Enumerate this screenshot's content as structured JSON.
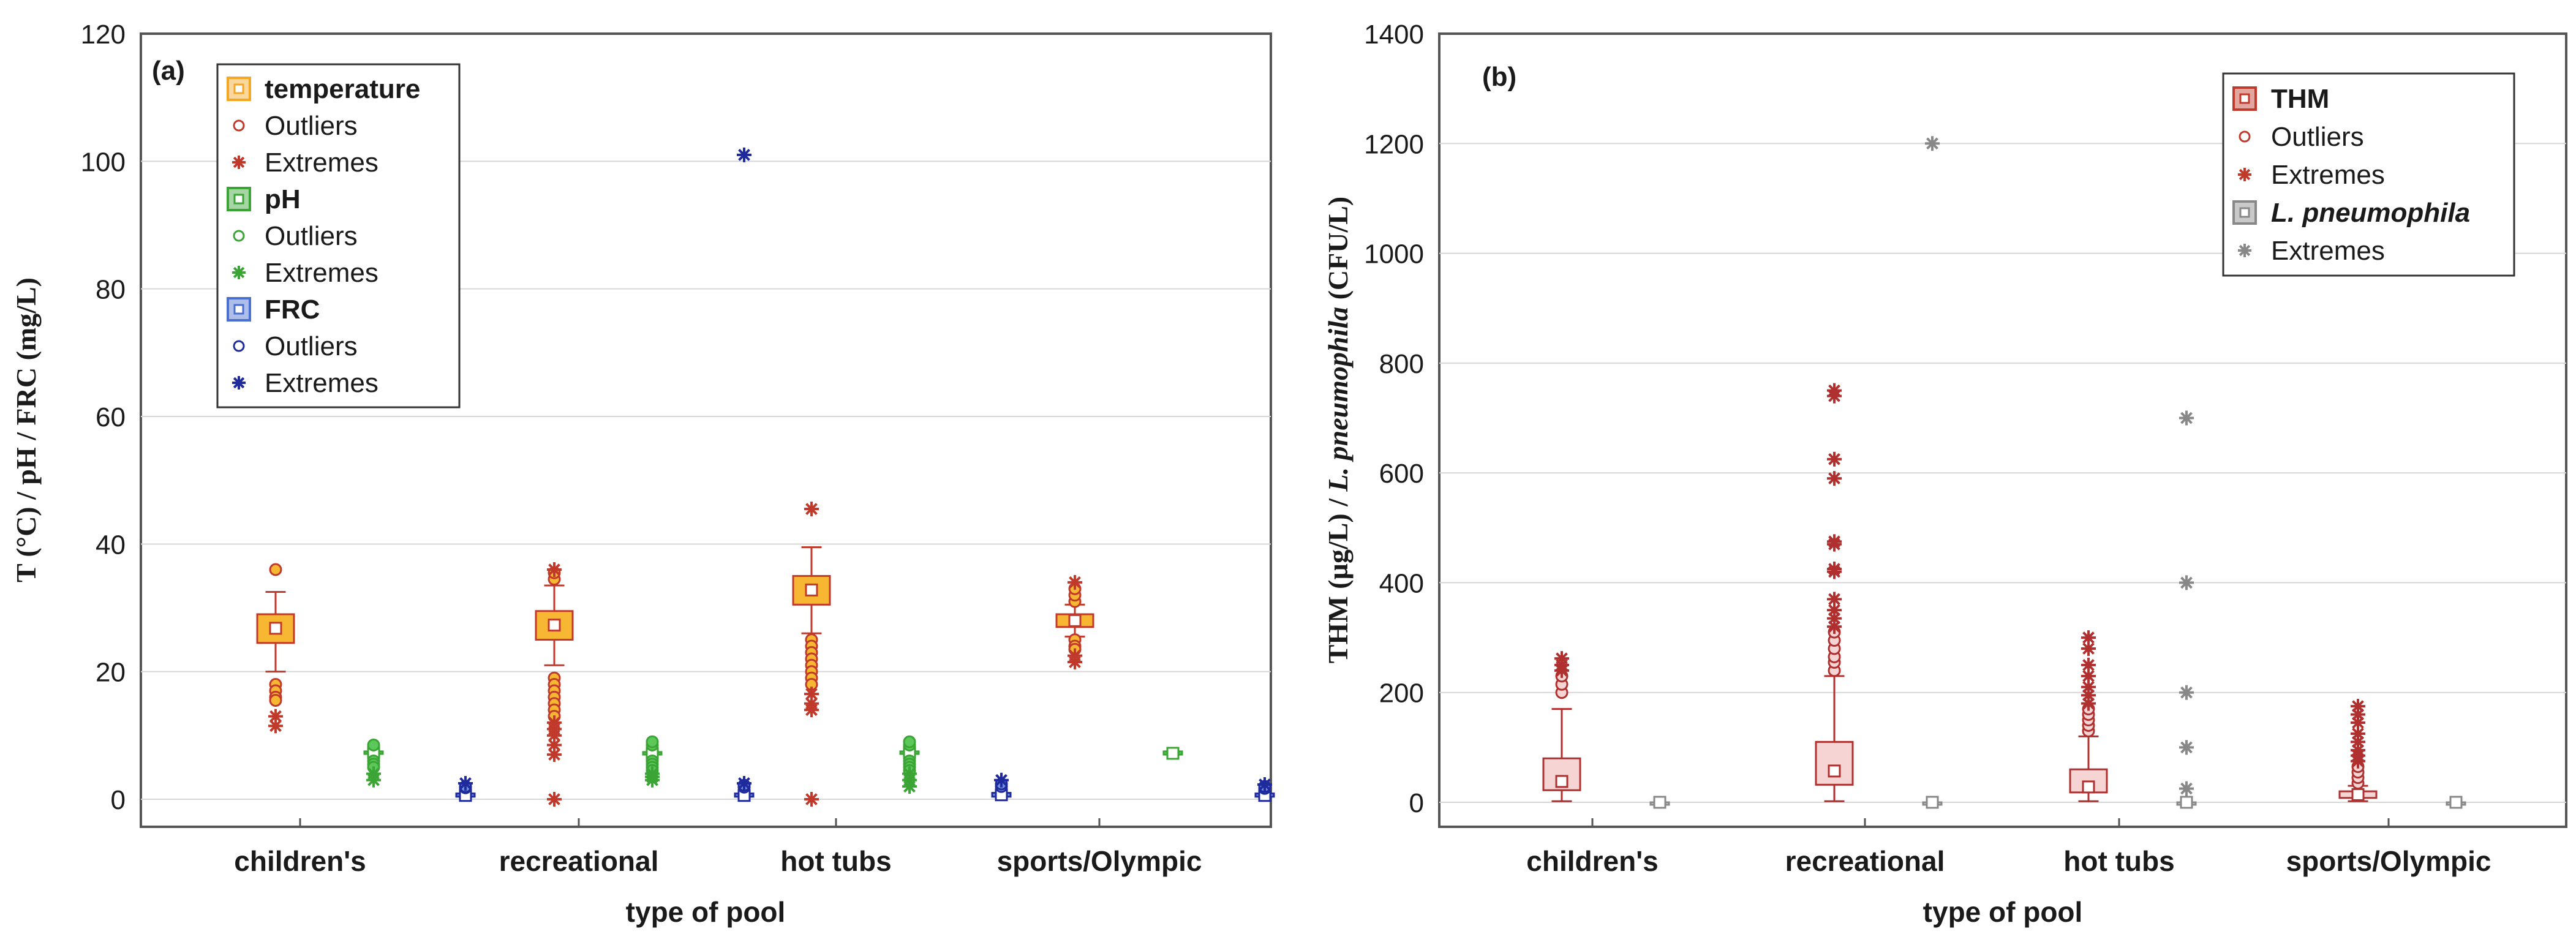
{
  "chart_data": [
    {
      "type": "boxplot",
      "panel_label": "(a)",
      "xlabel": "type of pool",
      "ylabel": "T (°C) / pH / FRC (mg/L)",
      "ylim": [
        0,
        120
      ],
      "yticks": [
        0,
        20,
        40,
        60,
        80,
        100,
        120
      ],
      "categories": [
        "children's",
        "recreational",
        "hot tubs",
        "sports/Olympic"
      ],
      "grid": true,
      "legend": {
        "position": "top-left",
        "entries": [
          {
            "label": "temperature",
            "bold": true,
            "symbol": "box",
            "color": "#f5a623"
          },
          {
            "label": "Outliers",
            "symbol": "circle",
            "color": "#c0392b"
          },
          {
            "label": "Extremes",
            "symbol": "star",
            "color": "#c0392b"
          },
          {
            "label": "pH",
            "bold": true,
            "symbol": "box",
            "color": "#3aa535"
          },
          {
            "label": "Outliers",
            "symbol": "circle",
            "color": "#3aa535"
          },
          {
            "label": "Extremes",
            "symbol": "star",
            "color": "#3aa535"
          },
          {
            "label": "FRC",
            "bold": true,
            "symbol": "box",
            "color": "#4a6fd1"
          },
          {
            "label": "Outliers",
            "symbol": "circle",
            "color": "#1f2a9c"
          },
          {
            "label": "Extremes",
            "symbol": "star",
            "color": "#1f2a9c"
          }
        ]
      },
      "series": [
        {
          "name": "temperature",
          "fill": "#f7b733",
          "edge": "#c0392b",
          "boxes": [
            {
              "median": 26.8,
              "q1": 24.5,
              "q3": 29.0,
              "whisker_low": 20.0,
              "whisker_high": 32.5,
              "outliers": [
                18.0,
                17.0,
                16.0,
                15.5,
                36.0
              ],
              "extremes": [
                13.0,
                11.5
              ]
            },
            {
              "median": 27.3,
              "q1": 25.0,
              "q3": 29.5,
              "whisker_low": 21.0,
              "whisker_high": 33.5,
              "outliers": [
                19.0,
                18.0,
                17.0,
                16.0,
                15.0,
                14.0,
                13.0,
                34.5,
                35.5
              ],
              "extremes": [
                12.0,
                11.0,
                10.0,
                8.5,
                7.0,
                0.0,
                36.0
              ]
            },
            {
              "median": 32.8,
              "q1": 30.5,
              "q3": 35.0,
              "whisker_low": 26.0,
              "whisker_high": 39.5,
              "outliers": [
                25.0,
                24.0,
                23.0,
                22.0,
                21.0,
                20.0,
                19.0,
                18.0
              ],
              "extremes": [
                16.5,
                15.0,
                14.0,
                0.0,
                45.5
              ]
            },
            {
              "median": 28.0,
              "q1": 27.0,
              "q3": 29.0,
              "whisker_low": 25.5,
              "whisker_high": 30.5,
              "outliers": [
                31.0,
                32.0,
                33.0,
                25.0,
                24.0,
                23.5
              ],
              "extremes": [
                34.0,
                22.5,
                21.5
              ]
            }
          ]
        },
        {
          "name": "pH",
          "fill": "#5cc85a",
          "edge": "#3aa535",
          "boxes": [
            {
              "median": 7.3,
              "q1": 7.1,
              "q3": 7.5,
              "whisker_low": 6.6,
              "whisker_high": 8.0,
              "outliers": [
                8.5,
                6.0,
                5.5,
                5.0
              ],
              "extremes": [
                4.0,
                3.0
              ]
            },
            {
              "median": 7.2,
              "q1": 7.0,
              "q3": 7.4,
              "whisker_low": 6.5,
              "whisker_high": 7.9,
              "outliers": [
                8.5,
                9.0,
                6.0,
                5.5,
                5.0,
                4.5
              ],
              "extremes": [
                4.0,
                3.5,
                3.0
              ]
            },
            {
              "median": 7.3,
              "q1": 7.1,
              "q3": 7.5,
              "whisker_low": 6.6,
              "whisker_high": 8.0,
              "outliers": [
                8.5,
                9.0,
                6.0,
                5.5,
                5.0,
                4.5
              ],
              "extremes": [
                4.0,
                3.0,
                2.0
              ]
            },
            {
              "median": 7.2,
              "q1": 7.0,
              "q3": 7.5,
              "whisker_low": 6.8,
              "whisker_high": 7.8,
              "outliers": [],
              "extremes": []
            }
          ]
        },
        {
          "name": "FRC",
          "fill": "#6f8fe0",
          "edge": "#1f2a9c",
          "boxes": [
            {
              "median": 0.6,
              "q1": 0.4,
              "q3": 0.9,
              "whisker_low": 0.1,
              "whisker_high": 1.5,
              "outliers": [
                1.8,
                2.0
              ],
              "extremes": [
                2.5
              ]
            },
            {
              "median": 0.6,
              "q1": 0.4,
              "q3": 0.9,
              "whisker_low": 0.1,
              "whisker_high": 1.6,
              "outliers": [
                1.9,
                2.2
              ],
              "extremes": [
                2.5,
                101.0
              ]
            },
            {
              "median": 0.7,
              "q1": 0.4,
              "q3": 1.0,
              "whisker_low": 0.1,
              "whisker_high": 1.7,
              "outliers": [
                2.0,
                2.4
              ],
              "extremes": [
                3.0
              ]
            },
            {
              "median": 0.6,
              "q1": 0.4,
              "q3": 0.9,
              "whisker_low": 0.1,
              "whisker_high": 1.4,
              "outliers": [
                1.7,
                2.0
              ],
              "extremes": [
                2.3
              ]
            }
          ]
        }
      ]
    },
    {
      "type": "boxplot",
      "panel_label": "(b)",
      "xlabel": "type of pool",
      "ylabel_parts": [
        "THM (µg/L) / ",
        "L. pneumophila",
        " (CFU/L)"
      ],
      "ylim": [
        0,
        1400
      ],
      "yticks": [
        0,
        200,
        400,
        600,
        800,
        1000,
        1200,
        1400
      ],
      "categories": [
        "children's",
        "recreational",
        "hot tubs",
        "sports/Olympic"
      ],
      "grid": true,
      "legend": {
        "position": "top-right",
        "entries": [
          {
            "label": "THM",
            "bold": true,
            "symbol": "box",
            "color": "#c0392b"
          },
          {
            "label": "Outliers",
            "symbol": "circle",
            "color": "#c0392b"
          },
          {
            "label": "Extremes",
            "symbol": "star",
            "color": "#c0392b"
          },
          {
            "label": "L. pneumophila",
            "bold": true,
            "italic": true,
            "symbol": "box",
            "color": "#888888"
          },
          {
            "label": "Extremes",
            "symbol": "star",
            "color": "#888888"
          }
        ]
      },
      "series": [
        {
          "name": "THM",
          "fill": "#f7d4d4",
          "edge": "#b03030",
          "boxes": [
            {
              "median": 38,
              "q1": 22,
              "q3": 80,
              "whisker_low": 2,
              "whisker_high": 170,
              "outliers": [
                200,
                215,
                230
              ],
              "extremes": [
                240,
                250,
                262
              ]
            },
            {
              "median": 57,
              "q1": 32,
              "q3": 110,
              "whisker_low": 2,
              "whisker_high": 230,
              "outliers": [
                240,
                255,
                265,
                280,
                295,
                310
              ],
              "extremes": [
                320,
                335,
                350,
                370,
                420,
                425,
                470,
                475,
                590,
                625,
                740,
                750
              ]
            },
            {
              "median": 28,
              "q1": 18,
              "q3": 60,
              "whisker_low": 2,
              "whisker_high": 120,
              "outliers": [
                130,
                140,
                150,
                160,
                170
              ],
              "extremes": [
                180,
                195,
                210,
                230,
                250,
                280,
                300
              ]
            },
            {
              "median": 14,
              "q1": 8,
              "q3": 20,
              "whisker_low": 2,
              "whisker_high": 30,
              "outliers": [
                35,
                45,
                55,
                65
              ],
              "extremes": [
                75,
                85,
                95,
                110,
                125,
                145,
                160,
                175
              ]
            }
          ]
        },
        {
          "name": "L. pneumophila",
          "fill": "#e0e0e0",
          "edge": "#888888",
          "boxes": [
            {
              "median": 0,
              "q1": 0,
              "q3": 0,
              "whisker_low": 0,
              "whisker_high": 0,
              "outliers": [],
              "extremes": []
            },
            {
              "median": 0,
              "q1": 0,
              "q3": 0,
              "whisker_low": 0,
              "whisker_high": 0,
              "outliers": [],
              "extremes": [
                1200
              ]
            },
            {
              "median": 0,
              "q1": 0,
              "q3": 0,
              "whisker_low": 0,
              "whisker_high": 0,
              "outliers": [],
              "extremes": [
                25,
                100,
                200,
                400,
                700
              ]
            },
            {
              "median": 0,
              "q1": 0,
              "q3": 0,
              "whisker_low": 0,
              "whisker_high": 0,
              "outliers": [],
              "extremes": []
            }
          ]
        }
      ]
    }
  ]
}
